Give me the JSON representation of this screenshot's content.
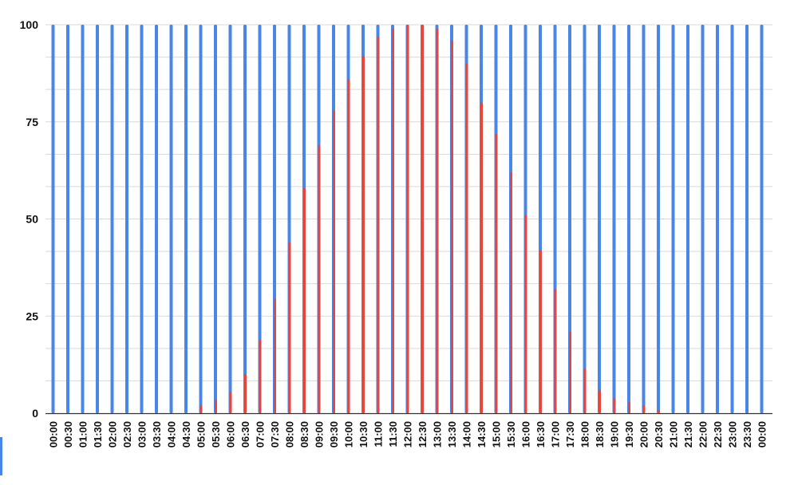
{
  "chart_data": {
    "type": "bar",
    "title": "",
    "xlabel": "",
    "ylabel": "",
    "ylim": [
      0,
      100
    ],
    "yticks": [
      "0",
      "25",
      "50",
      "75",
      "100"
    ],
    "grid": true,
    "legend": "none",
    "categories": [
      "00:00",
      "00:30",
      "01:00",
      "01:30",
      "02:00",
      "02:30",
      "03:00",
      "03:30",
      "04:00",
      "04:30",
      "05:00",
      "05:30",
      "06:00",
      "06:30",
      "07:00",
      "07:30",
      "08:00",
      "08:30",
      "09:00",
      "09:30",
      "10:00",
      "10:30",
      "11:00",
      "11:30",
      "12:00",
      "12:30",
      "13:00",
      "13:30",
      "14:00",
      "14:30",
      "15:00",
      "15:30",
      "16:00",
      "16:30",
      "17:00",
      "17:30",
      "18:00",
      "18:30",
      "19:00",
      "19:30",
      "20:00",
      "20:30",
      "21:00",
      "21:30",
      "22:00",
      "22:30",
      "23:00",
      "23:30",
      "00:00"
    ],
    "series": [
      {
        "color": "#4a86e8",
        "values": [
          100,
          100,
          100,
          100,
          100,
          100,
          100,
          100,
          100,
          100,
          100,
          100,
          100,
          100,
          100,
          100,
          100,
          100,
          100,
          100,
          100,
          100,
          100,
          100,
          100,
          100,
          100,
          100,
          100,
          100,
          100,
          100,
          100,
          100,
          100,
          100,
          100,
          100,
          100,
          100,
          100,
          100,
          100,
          100,
          100,
          100,
          100,
          100,
          100
        ]
      },
      {
        "color": "#e8453c",
        "values": [
          0,
          0,
          0,
          0,
          0,
          0,
          0,
          0,
          0,
          0,
          2,
          3.5,
          5.5,
          10,
          19,
          29.5,
          44,
          58,
          69,
          78,
          86,
          92,
          97,
          99,
          100,
          100,
          99,
          96,
          90,
          80,
          72,
          62,
          51,
          42,
          32,
          21,
          11.5,
          6,
          4,
          3,
          2,
          0.8,
          0,
          0,
          0,
          0,
          0,
          0,
          0
        ]
      }
    ]
  }
}
